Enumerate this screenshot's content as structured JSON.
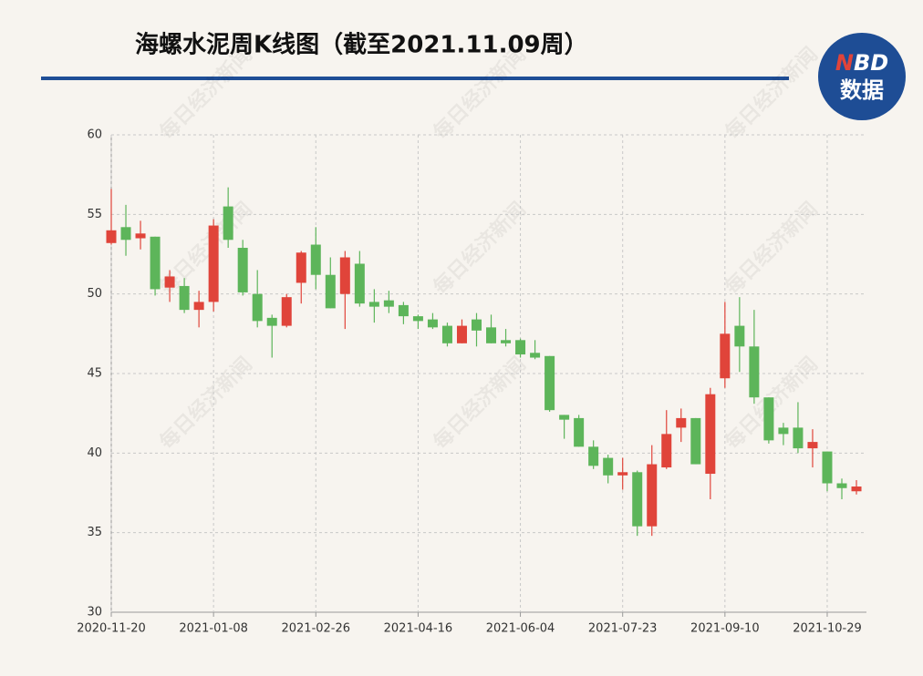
{
  "chart_data": {
    "type": "candlestick",
    "title": "海螺水泥周K线图（截至2021.11.09周）",
    "logo_parts": [
      "N",
      "BD",
      "数据"
    ],
    "watermark": "每日经济新闻",
    "up_color": "#e0443a",
    "down_color": "#5db55a",
    "grid": true,
    "categories": [
      "2020-11-20",
      null,
      null,
      null,
      null,
      null,
      null,
      "2021-01-08",
      null,
      null,
      null,
      null,
      null,
      null,
      "2021-02-26",
      null,
      null,
      null,
      null,
      null,
      null,
      "2021-04-16",
      null,
      null,
      null,
      null,
      null,
      null,
      "2021-06-04",
      null,
      null,
      null,
      null,
      null,
      null,
      "2021-07-23",
      null,
      null,
      null,
      null,
      null,
      null,
      "2021-09-10",
      null,
      null,
      null,
      null,
      null,
      null,
      "2021-10-29",
      null,
      null
    ],
    "open": [
      53.2,
      54.2,
      53.5,
      53.6,
      50.4,
      50.5,
      49.0,
      49.5,
      55.5,
      52.9,
      50.0,
      48.5,
      48.0,
      50.7,
      53.1,
      51.2,
      50.0,
      51.9,
      49.5,
      49.6,
      49.3,
      48.6,
      48.4,
      48.0,
      46.9,
      48.4,
      47.9,
      47.1,
      47.1,
      46.3,
      46.1,
      42.4,
      42.2,
      40.4,
      39.7,
      38.6,
      38.8,
      35.4,
      39.1,
      41.6,
      42.2,
      38.7,
      44.7,
      48.0,
      46.7,
      43.5,
      41.6,
      41.6,
      40.3,
      40.1,
      38.1,
      37.6
    ],
    "high": [
      56.6,
      55.6,
      54.6,
      53.6,
      51.5,
      51.0,
      50.2,
      54.7,
      56.7,
      53.4,
      51.5,
      48.7,
      50.0,
      52.7,
      54.2,
      52.3,
      52.7,
      52.7,
      50.3,
      50.2,
      49.5,
      48.7,
      48.8,
      48.2,
      48.4,
      48.8,
      48.7,
      47.8,
      47.2,
      47.1,
      46.1,
      42.4,
      42.4,
      40.8,
      39.9,
      39.7,
      38.9,
      40.5,
      42.7,
      42.8,
      42.2,
      44.1,
      49.5,
      49.8,
      49.0,
      43.5,
      41.9,
      43.2,
      41.5,
      40.1,
      38.4,
      38.3
    ],
    "low": [
      53.1,
      52.4,
      52.8,
      49.9,
      49.5,
      48.8,
      47.9,
      48.9,
      52.9,
      49.9,
      47.9,
      46.0,
      47.9,
      49.4,
      50.3,
      49.1,
      47.8,
      49.2,
      48.2,
      48.8,
      48.1,
      47.8,
      47.8,
      46.7,
      46.9,
      46.7,
      46.9,
      46.7,
      46.0,
      45.9,
      42.6,
      40.9,
      40.4,
      39.0,
      38.1,
      37.7,
      34.8,
      34.8,
      39.0,
      40.7,
      39.3,
      37.1,
      44.1,
      45.1,
      43.1,
      40.6,
      40.5,
      40.0,
      39.1,
      37.6,
      37.1,
      37.4
    ],
    "close": [
      54.0,
      53.4,
      53.8,
      50.3,
      51.1,
      49.0,
      49.5,
      54.3,
      53.4,
      50.1,
      48.3,
      48.0,
      49.8,
      52.6,
      51.2,
      49.1,
      52.3,
      49.4,
      49.2,
      49.2,
      48.6,
      48.3,
      47.9,
      46.9,
      48.0,
      47.7,
      46.9,
      46.9,
      46.2,
      46.0,
      42.7,
      42.1,
      40.4,
      39.2,
      38.6,
      38.8,
      35.4,
      39.3,
      41.2,
      42.2,
      39.3,
      43.7,
      47.5,
      46.7,
      43.5,
      40.8,
      41.2,
      40.3,
      40.7,
      38.1,
      37.8,
      37.9
    ],
    "ylim": [
      30,
      60
    ],
    "yticks": [
      30,
      35,
      40,
      45,
      50,
      55,
      60
    ]
  }
}
